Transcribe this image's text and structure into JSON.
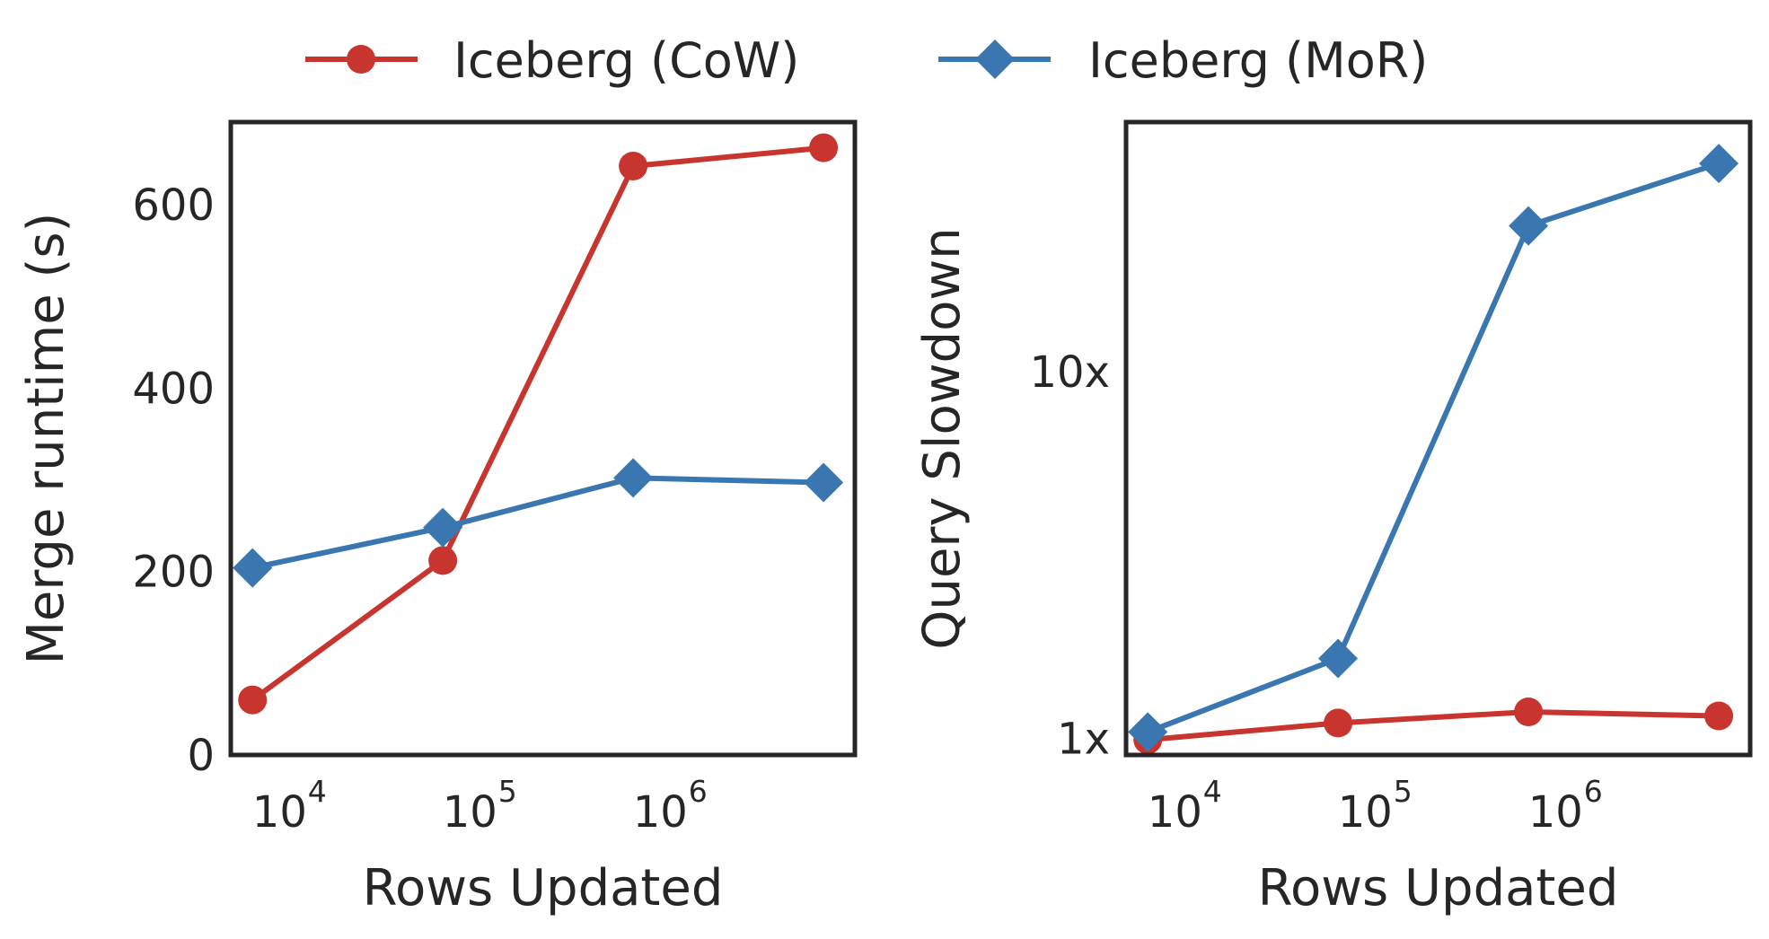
{
  "legend": {
    "placement": "top-center",
    "entries": [
      {
        "name": "Iceberg (CoW)",
        "color": "#c8352f",
        "marker": "circle"
      },
      {
        "name": "Iceberg (MoR)",
        "color": "#3a76b0",
        "marker": "diamond"
      }
    ]
  },
  "chart_data": [
    {
      "type": "line",
      "xlabel": "Rows Updated",
      "ylabel": "Merge runtime (s)",
      "x_scale": "log",
      "y_scale": "linear",
      "xlim": [
        5000,
        9500000
      ],
      "ylim": [
        0,
        690
      ],
      "x_ticks": [
        {
          "value": 10000,
          "base": "10",
          "exp": "4"
        },
        {
          "value": 100000,
          "base": "10",
          "exp": "5"
        },
        {
          "value": 1000000,
          "base": "10",
          "exp": "6"
        }
      ],
      "y_ticks": [
        {
          "value": 0,
          "label": "0"
        },
        {
          "value": 200,
          "label": "200"
        },
        {
          "value": 400,
          "label": "400"
        },
        {
          "value": 600,
          "label": "600"
        }
      ],
      "x": [
        6500,
        65000,
        650000,
        6500000
      ],
      "series": [
        {
          "name": "Iceberg (CoW)",
          "color": "#c8352f",
          "marker": "circle",
          "values": [
            60,
            212,
            642,
            662
          ]
        },
        {
          "name": "Iceberg (MoR)",
          "color": "#3a76b0",
          "marker": "diamond",
          "values": [
            204,
            248,
            302,
            297
          ]
        }
      ],
      "grid": false
    },
    {
      "type": "line",
      "xlabel": "Rows Updated",
      "ylabel": "Query Slowdown",
      "x_scale": "log",
      "y_scale": "log",
      "xlim": [
        5000,
        9500000
      ],
      "ylim": [
        0.9,
        48
      ],
      "x_ticks": [
        {
          "value": 10000,
          "base": "10",
          "exp": "4"
        },
        {
          "value": 100000,
          "base": "10",
          "exp": "5"
        },
        {
          "value": 1000000,
          "base": "10",
          "exp": "6"
        }
      ],
      "y_ticks": [
        {
          "value": 1,
          "label": "1x"
        },
        {
          "value": 10,
          "label": "10x"
        }
      ],
      "x": [
        6500,
        65000,
        650000,
        6500000
      ],
      "series": [
        {
          "name": "Iceberg (CoW)",
          "color": "#c8352f",
          "marker": "circle",
          "values": [
            0.99,
            1.1,
            1.18,
            1.15
          ]
        },
        {
          "name": "Iceberg (MoR)",
          "color": "#3a76b0",
          "marker": "diamond",
          "values": [
            1.04,
            1.65,
            25,
            37
          ]
        }
      ],
      "grid": false
    }
  ]
}
